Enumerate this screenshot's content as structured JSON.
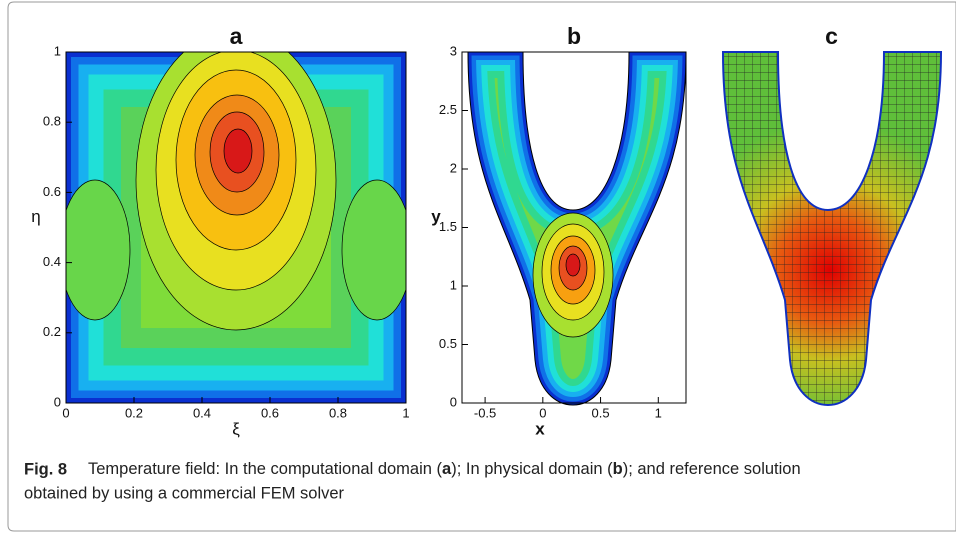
{
  "figure": {
    "panels": [
      {
        "label": "a",
        "x_label": "ξ",
        "y_label": "η",
        "xlim": [
          0,
          1
        ],
        "ylim": [
          0,
          1
        ],
        "xticks": [
          0,
          0.2,
          0.4,
          0.6,
          0.8,
          1
        ],
        "yticks": [
          0,
          0.2,
          0.4,
          0.6,
          0.8,
          1
        ]
      },
      {
        "label": "b",
        "x_label": "x",
        "y_label": "y",
        "xlim": [
          -0.7,
          1.24
        ],
        "ylim": [
          0,
          3
        ],
        "xticks": [
          -0.5,
          0,
          0.5,
          1
        ],
        "yticks": [
          0,
          0.5,
          1,
          1.5,
          2,
          2.5,
          3
        ]
      },
      {
        "label": "c"
      }
    ]
  },
  "caption": {
    "label": "Fig. 8",
    "parts": [
      "Temperature field: In the computational domain (",
      "a",
      "); In physical domain (",
      "b",
      "); and reference solution",
      "obtained by using a commercial FEM solver"
    ]
  }
}
